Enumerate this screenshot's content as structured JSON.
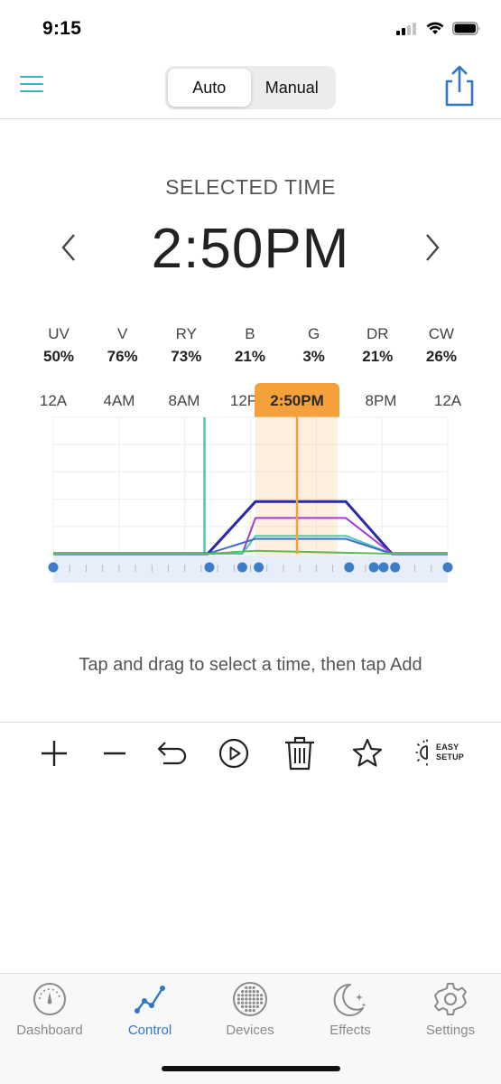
{
  "status_bar": {
    "time": "9:15"
  },
  "nav": {
    "segments": [
      "Auto",
      "Manual"
    ],
    "active_segment": "Auto"
  },
  "selected": {
    "label": "SELECTED TIME",
    "time": "2:50PM"
  },
  "channels": [
    {
      "name": "UV",
      "value": "50%"
    },
    {
      "name": "V",
      "value": "76%"
    },
    {
      "name": "RY",
      "value": "73%"
    },
    {
      "name": "B",
      "value": "21%"
    },
    {
      "name": "G",
      "value": "3%"
    },
    {
      "name": "DR",
      "value": "21%"
    },
    {
      "name": "CW",
      "value": "26%"
    }
  ],
  "chart": {
    "axis_labels": [
      "12A",
      "4AM",
      "8AM",
      "12P",
      "8PM",
      "12A"
    ],
    "badge": "2:50PM",
    "colors": {
      "accent": "#f4a13c",
      "teal": "#4bc8b5",
      "navy": "#2a2aa8",
      "purple": "#a83ad0",
      "blue": "#3a6fc4",
      "green": "#5dbb56",
      "point": "#3d7cc9"
    }
  },
  "chart_data": {
    "type": "line",
    "x_unit": "hour of day",
    "xlim": [
      0,
      24
    ],
    "series": [
      {
        "color": "#2a2aa8",
        "points": [
          [
            0,
            0
          ],
          [
            9.4,
            0
          ],
          [
            12.3,
            0.35
          ],
          [
            17.8,
            0.35
          ],
          [
            20.6,
            0
          ],
          [
            24,
            0
          ]
        ]
      },
      {
        "color": "#a83ad0",
        "points": [
          [
            0,
            0
          ],
          [
            11.5,
            0
          ],
          [
            12.3,
            0.24
          ],
          [
            17.8,
            0.24
          ],
          [
            20.6,
            0
          ],
          [
            24,
            0
          ]
        ]
      },
      {
        "color": "#4bc8b5",
        "points": [
          [
            0,
            0
          ],
          [
            11.5,
            0
          ],
          [
            12.3,
            0.12
          ],
          [
            17.8,
            0.12
          ],
          [
            20.6,
            0
          ],
          [
            24,
            0
          ]
        ]
      },
      {
        "color": "#3a6fc4",
        "points": [
          [
            0,
            0
          ],
          [
            9.4,
            0
          ],
          [
            12.3,
            0.1
          ],
          [
            17.8,
            0.1
          ],
          [
            20.6,
            0
          ],
          [
            24,
            0
          ]
        ]
      },
      {
        "color": "#5dbb56",
        "points": [
          [
            0,
            0
          ],
          [
            9.4,
            0
          ],
          [
            12.3,
            0.02
          ],
          [
            20.6,
            0
          ],
          [
            24,
            0
          ]
        ]
      }
    ],
    "markers_hours": [
      0,
      9.5,
      11.5,
      12.5,
      18,
      19.5,
      20.1,
      20.8,
      24
    ],
    "selected_hour": 14.83,
    "highlight_range": [
      12.3,
      17.3
    ],
    "teal_marker_hour": 9.2
  },
  "hint": "Tap and drag to select a time, then tap Add",
  "toolbar": {
    "easy_setup": [
      "EASY",
      "SETUP"
    ]
  },
  "tabs": [
    {
      "label": "Dashboard",
      "icon": "gauge-icon"
    },
    {
      "label": "Control",
      "icon": "line-chart-icon"
    },
    {
      "label": "Devices",
      "icon": "dot-grid-icon"
    },
    {
      "label": "Effects",
      "icon": "moon-stars-icon"
    },
    {
      "label": "Settings",
      "icon": "gear-icon"
    }
  ],
  "active_tab": "Control"
}
